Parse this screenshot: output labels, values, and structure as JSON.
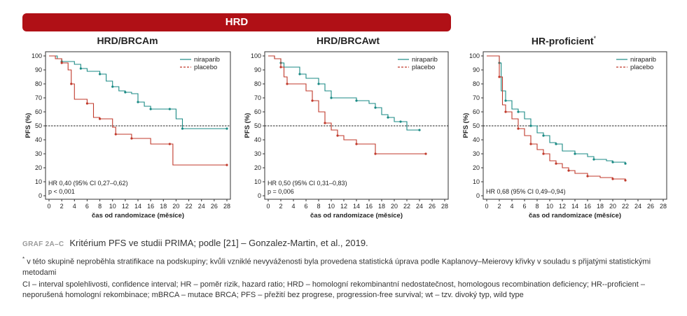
{
  "banner": "HRD",
  "panels": [
    {
      "title": "HRD/BRCAm",
      "asterisk": ""
    },
    {
      "title": "HRD/BRCAwt",
      "asterisk": ""
    },
    {
      "title": "HR-proficient",
      "asterisk": "*"
    }
  ],
  "chart_data": [
    {
      "type": "line",
      "title": "HRD/BRCAm",
      "xlabel": "čas od randomizace (měsíce)",
      "ylabel": "PFS (%)",
      "xlim": [
        0,
        28
      ],
      "ylim": [
        0,
        100
      ],
      "xticks": [
        0,
        2,
        4,
        6,
        8,
        10,
        12,
        14,
        16,
        18,
        20,
        22,
        24,
        26,
        28
      ],
      "yticks": [
        0,
        10,
        20,
        30,
        40,
        50,
        60,
        70,
        80,
        90,
        100
      ],
      "reference_line": 50,
      "legend": "top-right",
      "annotation": [
        "HR 0,40 (95% CI 0,27–0,62)",
        "p < 0,001"
      ],
      "series": [
        {
          "name": "niraparib",
          "color": "#1a8a84",
          "style": "solid",
          "points": [
            [
              0,
              100
            ],
            [
              1.3,
              98
            ],
            [
              2,
              96
            ],
            [
              4,
              94
            ],
            [
              5,
              91
            ],
            [
              6,
              89
            ],
            [
              8,
              87
            ],
            [
              9,
              82
            ],
            [
              10,
              78
            ],
            [
              11,
              75
            ],
            [
              12,
              74
            ],
            [
              13,
              73
            ],
            [
              14,
              67
            ],
            [
              15,
              64
            ],
            [
              16,
              62
            ],
            [
              17,
              62
            ],
            [
              19,
              62
            ],
            [
              20,
              55
            ],
            [
              21,
              48
            ],
            [
              24,
              48
            ],
            [
              28,
              48
            ]
          ]
        },
        {
          "name": "placebo",
          "color": "#c0392b",
          "style": "dashed",
          "points": [
            [
              0,
              100
            ],
            [
              1,
              98
            ],
            [
              2,
              95
            ],
            [
              3,
              90
            ],
            [
              3.5,
              80
            ],
            [
              4,
              69
            ],
            [
              6,
              66
            ],
            [
              7,
              56
            ],
            [
              8,
              55
            ],
            [
              10,
              49
            ],
            [
              10.5,
              44
            ],
            [
              12,
              44
            ],
            [
              13,
              41
            ],
            [
              16,
              37
            ],
            [
              19,
              37
            ],
            [
              19.5,
              22
            ],
            [
              28,
              22
            ]
          ]
        }
      ]
    },
    {
      "type": "line",
      "title": "HRD/BRCAwt",
      "xlabel": "čas od randomizace (měsíce)",
      "ylabel": "PFS (%)",
      "xlim": [
        0,
        28
      ],
      "ylim": [
        0,
        100
      ],
      "xticks": [
        0,
        2,
        4,
        6,
        8,
        10,
        12,
        14,
        16,
        18,
        20,
        22,
        24,
        26,
        28
      ],
      "yticks": [
        0,
        10,
        20,
        30,
        40,
        50,
        60,
        70,
        80,
        90,
        100
      ],
      "reference_line": 50,
      "legend": "top-right",
      "annotation": [
        "HR 0,50 (95% CI 0,31–0,83)",
        "p = 0,006"
      ],
      "series": [
        {
          "name": "niraparib",
          "color": "#1a8a84",
          "style": "solid",
          "points": [
            [
              0,
              100
            ],
            [
              1,
              98
            ],
            [
              2,
              95
            ],
            [
              2.5,
              92
            ],
            [
              5,
              87
            ],
            [
              6,
              84
            ],
            [
              8,
              80
            ],
            [
              9,
              75
            ],
            [
              10,
              70
            ],
            [
              12,
              70
            ],
            [
              14,
              68
            ],
            [
              16,
              66
            ],
            [
              17,
              63
            ],
            [
              18,
              58
            ],
            [
              19,
              56
            ],
            [
              20,
              53
            ],
            [
              21,
              53
            ],
            [
              22,
              47
            ],
            [
              24,
              47
            ]
          ]
        },
        {
          "name": "placebo",
          "color": "#c0392b",
          "style": "dashed",
          "points": [
            [
              0,
              100
            ],
            [
              1,
              98
            ],
            [
              2,
              92
            ],
            [
              2.5,
              85
            ],
            [
              3,
              80
            ],
            [
              6,
              75
            ],
            [
              7,
              68
            ],
            [
              8,
              60
            ],
            [
              9,
              52
            ],
            [
              10,
              47
            ],
            [
              11,
              43
            ],
            [
              12,
              40
            ],
            [
              14,
              37
            ],
            [
              16,
              37
            ],
            [
              17,
              30
            ],
            [
              18,
              30
            ],
            [
              25,
              30
            ]
          ]
        }
      ]
    },
    {
      "type": "line",
      "title": "HR-proficient",
      "xlabel": "čas od randomizace (měsíce)",
      "ylabel": "PFS (%)",
      "xlim": [
        0,
        28
      ],
      "ylim": [
        0,
        100
      ],
      "xticks": [
        0,
        2,
        4,
        6,
        8,
        10,
        12,
        14,
        16,
        18,
        20,
        22,
        24,
        26,
        28
      ],
      "yticks": [
        0,
        10,
        20,
        30,
        40,
        50,
        60,
        70,
        80,
        90,
        100
      ],
      "reference_line": 50,
      "legend": "top-right",
      "annotation": [
        "HR 0,68 (95% CI 0,49–0,94)"
      ],
      "series": [
        {
          "name": "niraparib",
          "color": "#1a8a84",
          "style": "solid",
          "points": [
            [
              0,
              100
            ],
            [
              1,
              100
            ],
            [
              2,
              95
            ],
            [
              2.3,
              75
            ],
            [
              3,
              68
            ],
            [
              4,
              62
            ],
            [
              5,
              60
            ],
            [
              6,
              55
            ],
            [
              7,
              50
            ],
            [
              8,
              45
            ],
            [
              9,
              43
            ],
            [
              10,
              38
            ],
            [
              11,
              37
            ],
            [
              12,
              32
            ],
            [
              14,
              30
            ],
            [
              16,
              28
            ],
            [
              17,
              26
            ],
            [
              19,
              25
            ],
            [
              20,
              24
            ],
            [
              22,
              23
            ]
          ]
        },
        {
          "name": "placebo",
          "color": "#c0392b",
          "style": "dashed",
          "points": [
            [
              0,
              100
            ],
            [
              1,
              100
            ],
            [
              2,
              85
            ],
            [
              2.5,
              65
            ],
            [
              3,
              60
            ],
            [
              4,
              55
            ],
            [
              5,
              48
            ],
            [
              6,
              43
            ],
            [
              7,
              37
            ],
            [
              8,
              33
            ],
            [
              9,
              30
            ],
            [
              10,
              25
            ],
            [
              11,
              23
            ],
            [
              12,
              20
            ],
            [
              13,
              18
            ],
            [
              14,
              16
            ],
            [
              16,
              14
            ],
            [
              18,
              13
            ],
            [
              20,
              12
            ],
            [
              22,
              11
            ]
          ]
        }
      ]
    }
  ],
  "caption": {
    "tag": "GRAF 2A–C",
    "text": "Kritérium PFS ve studii PRIMA; podle [21] – Gonzalez-Martin, et al., 2019."
  },
  "footnote": {
    "asterisk": "*",
    "text": "v této skupině neproběhla stratifikace na podskupiny; kvůli vzniklé nevyváženosti byla provedena statistická úprava podle Kaplanovy–Meierovy křivky v souladu s přijatými statistickými metodami"
  },
  "abbreviations": "CI – interval spolehlivosti, confidence interval; HR – poměr rizik, hazard ratio; HRD – homologní rekombinantní nedostatečnost, homologous recombination deficiency; HR--proficient – neporušená homologní rekombinace; mBRCA – mutace BRCA; PFS – přežití bez progrese, progression-free survival; wt – tzv. divoký typ, wild type"
}
